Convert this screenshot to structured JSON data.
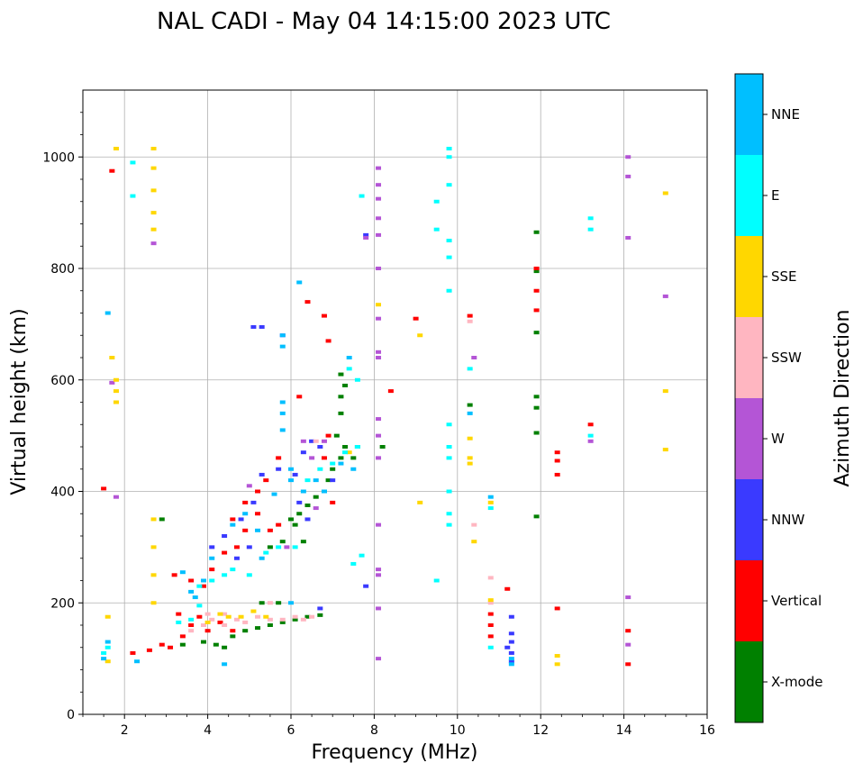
{
  "chart_data": {
    "type": "scatter",
    "title": "NAL CADI - May 04 14:15:00 2023 UTC",
    "xlabel": "Frequency (MHz)",
    "ylabel": "Virtual height (km)",
    "xlim": [
      1,
      16
    ],
    "ylim": [
      0,
      1120
    ],
    "xticks": [
      2,
      4,
      6,
      8,
      10,
      12,
      14,
      16
    ],
    "yticks": [
      0,
      200,
      400,
      600,
      800,
      1000
    ],
    "grid": true,
    "colorbar": {
      "label": "Azimuth Direction",
      "categories": [
        {
          "name": "X-mode",
          "color": "#008000"
        },
        {
          "name": "Vertical",
          "color": "#ff0000"
        },
        {
          "name": "NNW",
          "color": "#3a3aff"
        },
        {
          "name": "W",
          "color": "#b455d6"
        },
        {
          "name": "SSW",
          "color": "#ffb6c1"
        },
        {
          "name": "SSE",
          "color": "#ffd700"
        },
        {
          "name": "E",
          "color": "#00ffff"
        },
        {
          "name": "NNE",
          "color": "#00bfff"
        }
      ]
    },
    "series": [
      {
        "name": "X-mode",
        "points": [
          [
            3.4,
            125
          ],
          [
            3.9,
            130
          ],
          [
            4.2,
            125
          ],
          [
            4.4,
            120
          ],
          [
            4.6,
            140
          ],
          [
            4.9,
            150
          ],
          [
            5.2,
            155
          ],
          [
            5.5,
            160
          ],
          [
            5.8,
            165
          ],
          [
            6.1,
            170
          ],
          [
            6.4,
            175
          ],
          [
            6.7,
            178
          ],
          [
            5.3,
            200
          ],
          [
            5.7,
            200
          ],
          [
            6.3,
            310
          ],
          [
            6.1,
            340
          ],
          [
            6.4,
            375
          ],
          [
            6.6,
            390
          ],
          [
            6.8,
            400
          ],
          [
            6.9,
            420
          ],
          [
            7.0,
            440
          ],
          [
            7.2,
            460
          ],
          [
            7.3,
            480
          ],
          [
            7.5,
            460
          ],
          [
            7.6,
            480
          ],
          [
            7.1,
            500
          ],
          [
            7.2,
            540
          ],
          [
            7.2,
            570
          ],
          [
            7.3,
            590
          ],
          [
            7.2,
            610
          ],
          [
            5.5,
            300
          ],
          [
            5.8,
            310
          ],
          [
            6.0,
            350
          ],
          [
            6.2,
            360
          ],
          [
            2.9,
            350
          ],
          [
            8.2,
            480
          ],
          [
            11.9,
            355
          ],
          [
            11.9,
            505
          ],
          [
            11.9,
            550
          ],
          [
            11.9,
            570
          ],
          [
            11.9,
            685
          ],
          [
            11.9,
            795
          ],
          [
            11.9,
            865
          ],
          [
            10.3,
            555
          ]
        ]
      },
      {
        "name": "Vertical",
        "points": [
          [
            1.5,
            405
          ],
          [
            1.7,
            975
          ],
          [
            2.2,
            110
          ],
          [
            2.6,
            115
          ],
          [
            2.9,
            125
          ],
          [
            3.1,
            120
          ],
          [
            3.3,
            180
          ],
          [
            3.4,
            140
          ],
          [
            3.6,
            160
          ],
          [
            3.8,
            175
          ],
          [
            4.0,
            150
          ],
          [
            4.3,
            165
          ],
          [
            4.6,
            150
          ],
          [
            3.2,
            250
          ],
          [
            3.6,
            240
          ],
          [
            3.9,
            230
          ],
          [
            4.1,
            260
          ],
          [
            4.4,
            290
          ],
          [
            4.7,
            300
          ],
          [
            4.9,
            330
          ],
          [
            5.2,
            360
          ],
          [
            5.5,
            330
          ],
          [
            5.7,
            340
          ],
          [
            4.6,
            350
          ],
          [
            4.9,
            380
          ],
          [
            5.2,
            400
          ],
          [
            5.4,
            420
          ],
          [
            5.7,
            460
          ],
          [
            6.2,
            570
          ],
          [
            6.4,
            740
          ],
          [
            6.8,
            460
          ],
          [
            6.9,
            500
          ],
          [
            7.0,
            380
          ],
          [
            6.8,
            715
          ],
          [
            6.9,
            670
          ],
          [
            8.4,
            580
          ],
          [
            9.0,
            710
          ],
          [
            10.3,
            715
          ],
          [
            10.8,
            180
          ],
          [
            10.8,
            160
          ],
          [
            10.8,
            140
          ],
          [
            11.9,
            725
          ],
          [
            11.9,
            760
          ],
          [
            11.9,
            800
          ],
          [
            12.4,
            470
          ],
          [
            12.4,
            430
          ],
          [
            12.4,
            455
          ],
          [
            12.4,
            190
          ],
          [
            13.2,
            520
          ],
          [
            14.1,
            150
          ],
          [
            14.1,
            90
          ],
          [
            11.2,
            225
          ]
        ]
      },
      {
        "name": "NNW",
        "points": [
          [
            4.1,
            300
          ],
          [
            4.4,
            320
          ],
          [
            4.8,
            350
          ],
          [
            5.1,
            380
          ],
          [
            5.3,
            430
          ],
          [
            5.7,
            440
          ],
          [
            6.1,
            430
          ],
          [
            6.3,
            470
          ],
          [
            4.7,
            280
          ],
          [
            5.0,
            300
          ],
          [
            6.5,
            490
          ],
          [
            6.7,
            480
          ],
          [
            7.0,
            420
          ],
          [
            6.4,
            350
          ],
          [
            6.2,
            380
          ],
          [
            5.1,
            695
          ],
          [
            5.3,
            695
          ],
          [
            6.7,
            190
          ],
          [
            11.3,
            175
          ],
          [
            11.3,
            130
          ],
          [
            11.3,
            110
          ],
          [
            11.3,
            95
          ],
          [
            11.3,
            145
          ],
          [
            11.2,
            120
          ],
          [
            7.8,
            230
          ],
          [
            7.8,
            860
          ],
          [
            5.8,
            680
          ]
        ]
      },
      {
        "name": "W",
        "points": [
          [
            1.8,
            390
          ],
          [
            1.7,
            595
          ],
          [
            2.7,
            845
          ],
          [
            5.0,
            410
          ],
          [
            5.9,
            300
          ],
          [
            6.3,
            490
          ],
          [
            6.5,
            460
          ],
          [
            6.6,
            370
          ],
          [
            6.8,
            490
          ],
          [
            8.1,
            980
          ],
          [
            8.1,
            950
          ],
          [
            8.1,
            925
          ],
          [
            8.1,
            890
          ],
          [
            8.1,
            860
          ],
          [
            8.1,
            800
          ],
          [
            8.1,
            710
          ],
          [
            8.1,
            650
          ],
          [
            8.1,
            640
          ],
          [
            8.1,
            530
          ],
          [
            8.1,
            500
          ],
          [
            8.1,
            460
          ],
          [
            8.1,
            340
          ],
          [
            8.1,
            260
          ],
          [
            8.1,
            250
          ],
          [
            8.1,
            190
          ],
          [
            8.1,
            100
          ],
          [
            7.8,
            855
          ],
          [
            10.4,
            640
          ],
          [
            13.2,
            490
          ],
          [
            14.1,
            1000
          ],
          [
            14.1,
            965
          ],
          [
            14.1,
            855
          ],
          [
            14.1,
            210
          ],
          [
            14.1,
            125
          ],
          [
            15.0,
            750
          ]
        ]
      },
      {
        "name": "SSW",
        "points": [
          [
            3.6,
            150
          ],
          [
            3.9,
            160
          ],
          [
            4.1,
            170
          ],
          [
            4.4,
            160
          ],
          [
            4.7,
            170
          ],
          [
            4.9,
            165
          ],
          [
            5.2,
            175
          ],
          [
            5.5,
            170
          ],
          [
            5.8,
            170
          ],
          [
            6.1,
            175
          ],
          [
            6.3,
            170
          ],
          [
            6.5,
            175
          ],
          [
            4.0,
            180
          ],
          [
            4.4,
            180
          ],
          [
            5.5,
            200
          ],
          [
            10.3,
            705
          ],
          [
            10.4,
            340
          ],
          [
            10.8,
            245
          ],
          [
            10.8,
            200
          ],
          [
            6.6,
            490
          ]
        ]
      },
      {
        "name": "SSE",
        "points": [
          [
            1.6,
            175
          ],
          [
            1.6,
            95
          ],
          [
            1.8,
            1015
          ],
          [
            2.7,
            1015
          ],
          [
            2.7,
            980
          ],
          [
            2.7,
            940
          ],
          [
            2.7,
            900
          ],
          [
            2.7,
            870
          ],
          [
            2.7,
            350
          ],
          [
            2.7,
            300
          ],
          [
            2.7,
            250
          ],
          [
            2.7,
            200
          ],
          [
            1.8,
            600
          ],
          [
            1.8,
            580
          ],
          [
            1.8,
            560
          ],
          [
            1.7,
            640
          ],
          [
            4.0,
            165
          ],
          [
            4.3,
            180
          ],
          [
            4.5,
            175
          ],
          [
            4.8,
            175
          ],
          [
            5.1,
            185
          ],
          [
            5.4,
            175
          ],
          [
            8.1,
            735
          ],
          [
            9.1,
            680
          ],
          [
            9.1,
            380
          ],
          [
            10.3,
            495
          ],
          [
            10.3,
            450
          ],
          [
            10.3,
            460
          ],
          [
            10.4,
            310
          ],
          [
            10.8,
            380
          ],
          [
            10.8,
            205
          ],
          [
            12.4,
            105
          ],
          [
            12.4,
            90
          ],
          [
            15.0,
            935
          ],
          [
            15.0,
            580
          ],
          [
            15.0,
            475
          ],
          [
            7.4,
            470
          ]
        ]
      },
      {
        "name": "E",
        "points": [
          [
            1.5,
            110
          ],
          [
            1.6,
            120
          ],
          [
            2.2,
            990
          ],
          [
            2.2,
            930
          ],
          [
            3.3,
            165
          ],
          [
            3.6,
            170
          ],
          [
            3.8,
            195
          ],
          [
            3.8,
            230
          ],
          [
            4.1,
            240
          ],
          [
            4.4,
            250
          ],
          [
            4.6,
            260
          ],
          [
            5.0,
            250
          ],
          [
            5.4,
            290
          ],
          [
            5.7,
            300
          ],
          [
            6.1,
            300
          ],
          [
            6.4,
            420
          ],
          [
            6.7,
            440
          ],
          [
            7.0,
            450
          ],
          [
            7.3,
            470
          ],
          [
            7.6,
            480
          ],
          [
            7.4,
            620
          ],
          [
            7.6,
            600
          ],
          [
            7.7,
            930
          ],
          [
            7.5,
            270
          ],
          [
            7.7,
            285
          ],
          [
            9.5,
            920
          ],
          [
            9.5,
            240
          ],
          [
            9.5,
            870
          ],
          [
            9.8,
            1015
          ],
          [
            9.8,
            1000
          ],
          [
            9.8,
            950
          ],
          [
            9.8,
            850
          ],
          [
            9.8,
            820
          ],
          [
            9.8,
            760
          ],
          [
            9.8,
            520
          ],
          [
            9.8,
            480
          ],
          [
            9.8,
            400
          ],
          [
            9.8,
            360
          ],
          [
            9.8,
            340
          ],
          [
            9.8,
            460
          ],
          [
            10.3,
            620
          ],
          [
            10.8,
            370
          ],
          [
            10.8,
            120
          ],
          [
            13.2,
            890
          ],
          [
            13.2,
            870
          ],
          [
            13.2,
            500
          ]
        ]
      },
      {
        "name": "NNE",
        "points": [
          [
            1.5,
            100
          ],
          [
            1.6,
            130
          ],
          [
            1.6,
            720
          ],
          [
            2.3,
            95
          ],
          [
            3.4,
            255
          ],
          [
            3.6,
            220
          ],
          [
            3.7,
            210
          ],
          [
            3.9,
            240
          ],
          [
            4.1,
            280
          ],
          [
            4.4,
            90
          ],
          [
            4.6,
            340
          ],
          [
            4.9,
            360
          ],
          [
            5.2,
            330
          ],
          [
            5.3,
            280
          ],
          [
            5.6,
            395
          ],
          [
            5.8,
            510
          ],
          [
            5.8,
            540
          ],
          [
            5.8,
            560
          ],
          [
            5.8,
            660
          ],
          [
            5.8,
            680
          ],
          [
            6.0,
            420
          ],
          [
            6.0,
            200
          ],
          [
            6.3,
            400
          ],
          [
            6.6,
            420
          ],
          [
            6.8,
            400
          ],
          [
            6.0,
            440
          ],
          [
            6.2,
            775
          ],
          [
            7.4,
            640
          ],
          [
            7.2,
            450
          ],
          [
            7.5,
            440
          ],
          [
            10.3,
            540
          ],
          [
            10.8,
            390
          ],
          [
            11.3,
            100
          ],
          [
            11.3,
            90
          ]
        ]
      }
    ]
  }
}
